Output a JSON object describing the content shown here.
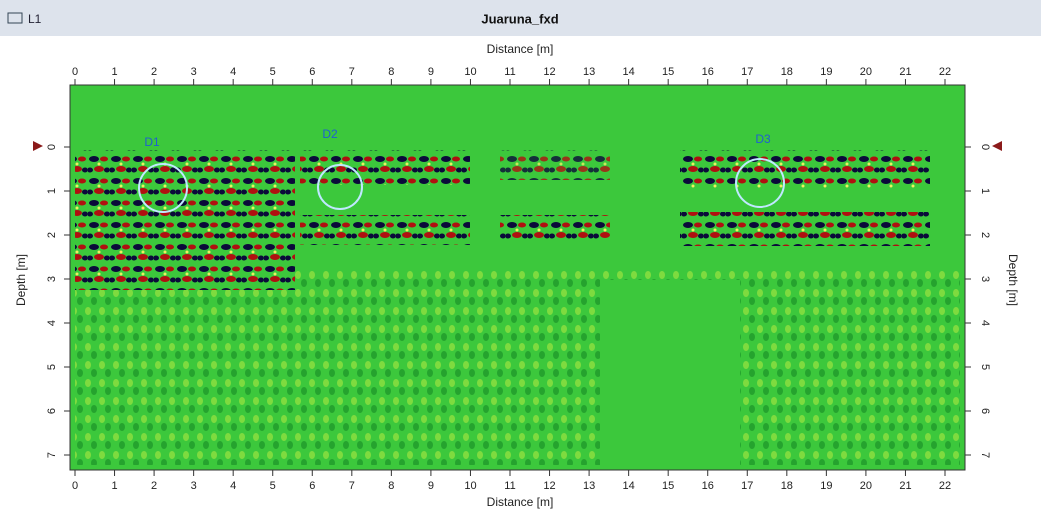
{
  "window": {
    "tab": "L1",
    "title": "Juaruna_fxd"
  },
  "axes": {
    "x_label_top": "Distance [m]",
    "x_label_bottom": "Distance [m]",
    "y_label_left": "Depth [m]",
    "y_label_right": "Depth [m]",
    "x_ticks": [
      "0",
      "1",
      "2",
      "3",
      "4",
      "5",
      "6",
      "7",
      "8",
      "9",
      "10",
      "11",
      "12",
      "13",
      "14",
      "15",
      "16",
      "17",
      "18",
      "19",
      "20",
      "21",
      "22"
    ],
    "y_ticks": [
      "0",
      "1",
      "2",
      "3",
      "4",
      "5",
      "6",
      "7"
    ]
  },
  "annotations": [
    "D1",
    "D2",
    "D3"
  ]
}
